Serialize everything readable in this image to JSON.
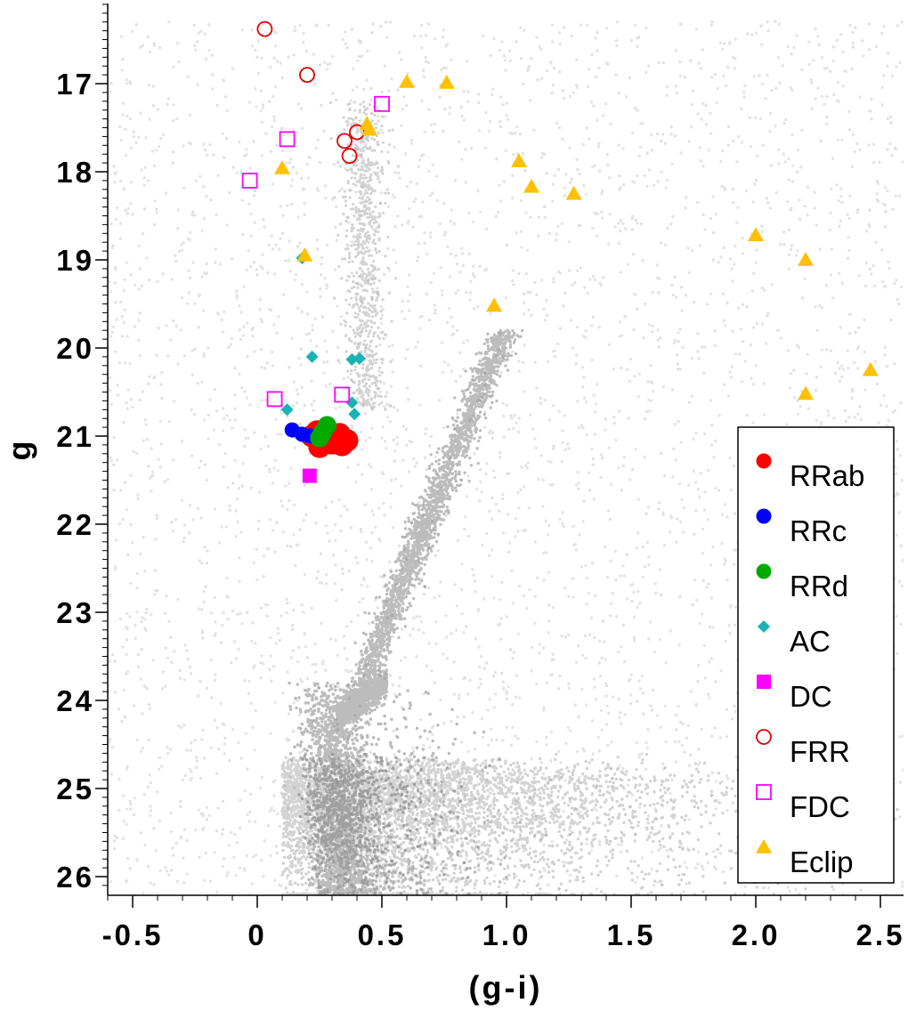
{
  "chart_data": {
    "type": "scatter",
    "title": "",
    "xlabel": "(g-i)",
    "ylabel": "g",
    "xlim": [
      -0.6,
      2.6
    ],
    "ylim": [
      26.2,
      16.1
    ],
    "y_inverted": true,
    "x_ticks": [
      -0.5,
      0,
      0.5,
      1.0,
      1.5,
      2.0,
      2.5
    ],
    "x_tick_labels": [
      "-0.5",
      "0",
      "0.5",
      "1.0",
      "1.5",
      "2.0",
      "2.5"
    ],
    "y_ticks": [
      17,
      18,
      19,
      20,
      21,
      22,
      23,
      24,
      25,
      26
    ],
    "y_tick_labels": [
      "17",
      "18",
      "19",
      "20",
      "21",
      "22",
      "23",
      "24",
      "25",
      "26"
    ],
    "grid": false,
    "legend_position": "bottom-right",
    "background_population": {
      "color": "#808080",
      "description_shape": "dense grey field-star points; main sequence turnoff near g-i 0.3 g 24.5; red giant branch rising to g-i 0.95 g 20"
    },
    "series": [
      {
        "name": "RRab",
        "marker": "circle-filled",
        "color": "#ff0000",
        "x": [
          0.22,
          0.24,
          0.26,
          0.28,
          0.3,
          0.32,
          0.34,
          0.36,
          0.25,
          0.33
        ],
        "y": [
          21.0,
          20.95,
          21.05,
          21.0,
          21.08,
          21.02,
          21.1,
          21.05,
          21.12,
          20.98
        ]
      },
      {
        "name": "RRc",
        "marker": "circle-filled",
        "color": "#0000ff",
        "x": [
          0.14,
          0.18,
          0.21
        ],
        "y": [
          20.93,
          20.98,
          21.0
        ]
      },
      {
        "name": "RRd",
        "marker": "circle-filled",
        "color": "#00aa00",
        "x": [
          0.25,
          0.28,
          0.26
        ],
        "y": [
          21.02,
          20.88,
          20.97
        ]
      },
      {
        "name": "AC",
        "marker": "diamond",
        "color": "#1ab3b3",
        "x": [
          0.18,
          0.22,
          0.38,
          0.41,
          0.12,
          0.38,
          0.39
        ],
        "y": [
          18.98,
          20.1,
          20.13,
          20.12,
          20.7,
          20.62,
          20.75
        ]
      },
      {
        "name": "DC",
        "marker": "square-filled",
        "color": "#ff00ff",
        "x": [
          0.21
        ],
        "y": [
          21.45
        ]
      },
      {
        "name": "FRR",
        "marker": "circle-open",
        "color": "#e00000",
        "x": [
          0.03,
          0.2,
          0.35,
          0.4,
          0.37
        ],
        "y": [
          16.38,
          16.9,
          17.65,
          17.55,
          17.82
        ]
      },
      {
        "name": "FDC",
        "marker": "square-open",
        "color": "#ff00ff",
        "x": [
          0.5,
          0.12,
          -0.03,
          0.07,
          0.34
        ],
        "y": [
          17.23,
          17.63,
          18.1,
          20.58,
          20.53
        ]
      },
      {
        "name": "Eclip",
        "marker": "triangle",
        "color": "#ffc000",
        "x": [
          0.6,
          0.76,
          0.45,
          0.44,
          0.1,
          1.05,
          1.1,
          1.27,
          0.19,
          2.0,
          2.2,
          0.95,
          2.46,
          2.2
        ],
        "y": [
          16.98,
          16.99,
          17.52,
          17.46,
          17.96,
          17.88,
          18.17,
          18.25,
          18.95,
          18.72,
          19.0,
          19.52,
          20.25,
          20.52
        ]
      }
    ]
  }
}
